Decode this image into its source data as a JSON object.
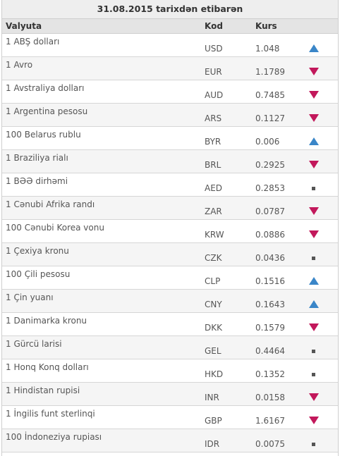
{
  "title": "31.08.2015 tarixdən etibarən",
  "columns": {
    "currency": "Valyuta",
    "code": "Kod",
    "rate": "Kurs"
  },
  "rows": [
    {
      "name": "1 ABŞ dolları",
      "code": "USD",
      "rate": "1.048",
      "trend": "up",
      "trend_icon": "arrow-up-icon"
    },
    {
      "name": "1 Avro",
      "code": "EUR",
      "rate": "1.1789",
      "trend": "down",
      "trend_icon": "arrow-down-icon"
    },
    {
      "name": "1 Avstraliya dolları",
      "code": "AUD",
      "rate": "0.7485",
      "trend": "down",
      "trend_icon": "arrow-down-icon"
    },
    {
      "name": "1 Argentina pesosu",
      "code": "ARS",
      "rate": "0.1127",
      "trend": "down",
      "trend_icon": "arrow-down-icon"
    },
    {
      "name": "100 Belarus rublu",
      "code": "BYR",
      "rate": "0.006",
      "trend": "up",
      "trend_icon": "arrow-up-icon"
    },
    {
      "name": "1 Braziliya rialı",
      "code": "BRL",
      "rate": "0.2925",
      "trend": "down",
      "trend_icon": "arrow-down-icon"
    },
    {
      "name": "1 BƏƏ dirhəmi",
      "code": "AED",
      "rate": "0.2853",
      "trend": "same",
      "trend_icon": "unchanged-icon"
    },
    {
      "name": "1 Cənubi Afrika randı",
      "code": "ZAR",
      "rate": "0.0787",
      "trend": "down",
      "trend_icon": "arrow-down-icon"
    },
    {
      "name": "100 Cənubi Korea vonu",
      "code": "KRW",
      "rate": "0.0886",
      "trend": "down",
      "trend_icon": "arrow-down-icon"
    },
    {
      "name": "1 Çexiya kronu",
      "code": "CZK",
      "rate": "0.0436",
      "trend": "same",
      "trend_icon": "unchanged-icon"
    },
    {
      "name": "100 Çili pesosu",
      "code": "CLP",
      "rate": "0.1516",
      "trend": "up",
      "trend_icon": "arrow-up-icon"
    },
    {
      "name": "1 Çin yuanı",
      "code": "CNY",
      "rate": "0.1643",
      "trend": "up",
      "trend_icon": "arrow-up-icon"
    },
    {
      "name": "1 Danimarka kronu",
      "code": "DKK",
      "rate": "0.1579",
      "trend": "down",
      "trend_icon": "arrow-down-icon"
    },
    {
      "name": "1 Gürcü larisi",
      "code": "GEL",
      "rate": "0.4464",
      "trend": "same",
      "trend_icon": "unchanged-icon"
    },
    {
      "name": "1 Honq Konq dolları",
      "code": "HKD",
      "rate": "0.1352",
      "trend": "same",
      "trend_icon": "unchanged-icon"
    },
    {
      "name": "1 Hindistan rupisi",
      "code": "INR",
      "rate": "0.0158",
      "trend": "down",
      "trend_icon": "arrow-down-icon"
    },
    {
      "name": "1 İngilis funt sterlinqi",
      "code": "GBP",
      "rate": "1.6167",
      "trend": "down",
      "trend_icon": "arrow-down-icon"
    },
    {
      "name": "100 İndoneziya rupiası",
      "code": "IDR",
      "rate": "0.0075",
      "trend": "same",
      "trend_icon": "unchanged-icon"
    }
  ],
  "colors": {
    "up": "#3a86c8",
    "down": "#c2185b",
    "same": "#555555"
  }
}
